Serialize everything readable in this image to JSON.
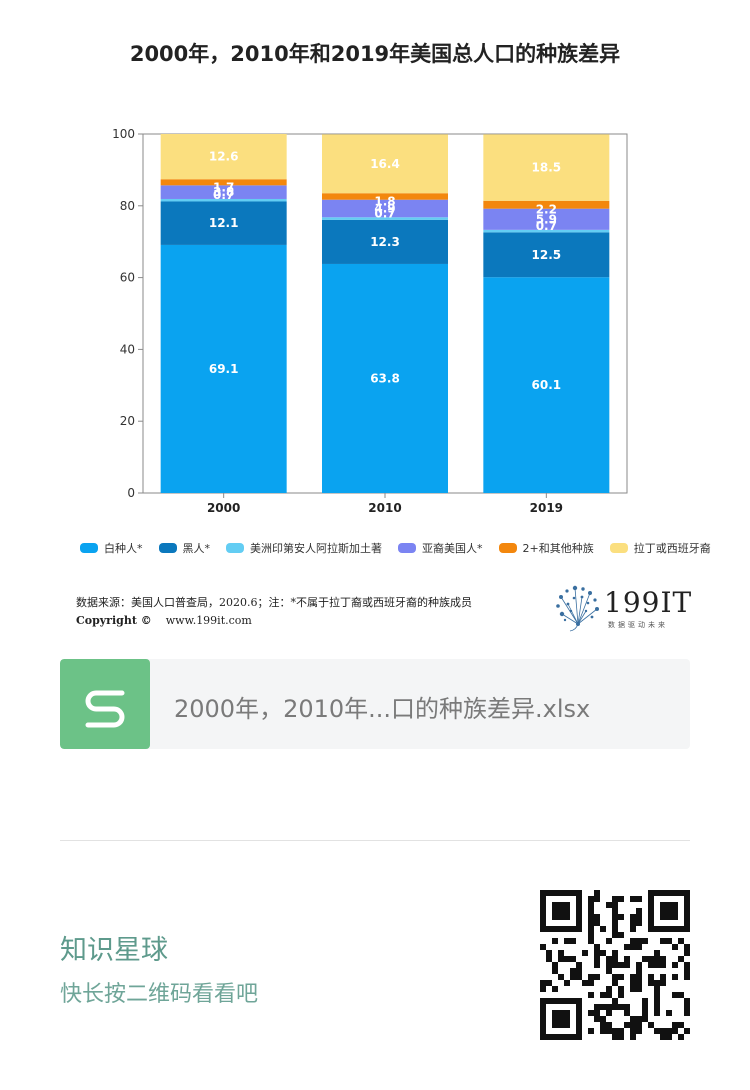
{
  "title": "2000年，2010年和2019年美国总人口的种族差异",
  "chart_data": {
    "type": "bar",
    "stacked": true,
    "categories": [
      "2000",
      "2010",
      "2019"
    ],
    "ylim": [
      0,
      100
    ],
    "yticks": [
      0,
      20,
      40,
      60,
      80,
      100
    ],
    "legend_position": "bottom",
    "series": [
      {
        "name": "白种人*",
        "color": "#0aa3f0",
        "values": [
          69.1,
          63.8,
          60.1
        ],
        "labels": [
          "69.1",
          "63.8",
          "60.1"
        ]
      },
      {
        "name": "黑人*",
        "color": "#0b78bd",
        "values": [
          12.1,
          12.3,
          12.5
        ],
        "labels": [
          "12.1",
          "12.3",
          "12.5"
        ]
      },
      {
        "name": "美洲印第安人阿拉斯加土著",
        "color": "#63cdf3",
        "values": [
          0.7,
          0.7,
          0.7
        ],
        "labels": [
          "0.7",
          "0.7",
          "0.7"
        ]
      },
      {
        "name": "亚裔美国人*",
        "color": "#7b84f2",
        "values": [
          3.8,
          4.9,
          5.9
        ],
        "labels": [
          "3.8",
          "4.9",
          "5.9"
        ]
      },
      {
        "name": "2+和其他种族",
        "color": "#f3870d",
        "values": [
          1.7,
          1.8,
          2.2
        ],
        "labels": [
          "1.7",
          "1.8",
          "2.2"
        ]
      },
      {
        "name": "拉丁或西班牙裔",
        "color": "#fbdf7f",
        "values": [
          12.6,
          16.4,
          18.5
        ],
        "labels": [
          "12.6",
          "16.4",
          "18.5"
        ]
      }
    ]
  },
  "source_text": "数据来源：美国人口普查局，2020.6；注：*不属于拉丁裔或西班牙裔的种族成员",
  "copyright_label": "Copyright ©",
  "copyright_url": "www.199it.com",
  "logo": {
    "name": "199IT",
    "tagline": "数据驱动未来"
  },
  "file_card": {
    "icon": "S",
    "name": "2000年，2010年...口的种族差异.xlsx",
    "accent": "#6cc287"
  },
  "planet": {
    "title": "知识星球",
    "subtitle": "快长按二维码看看吧"
  }
}
